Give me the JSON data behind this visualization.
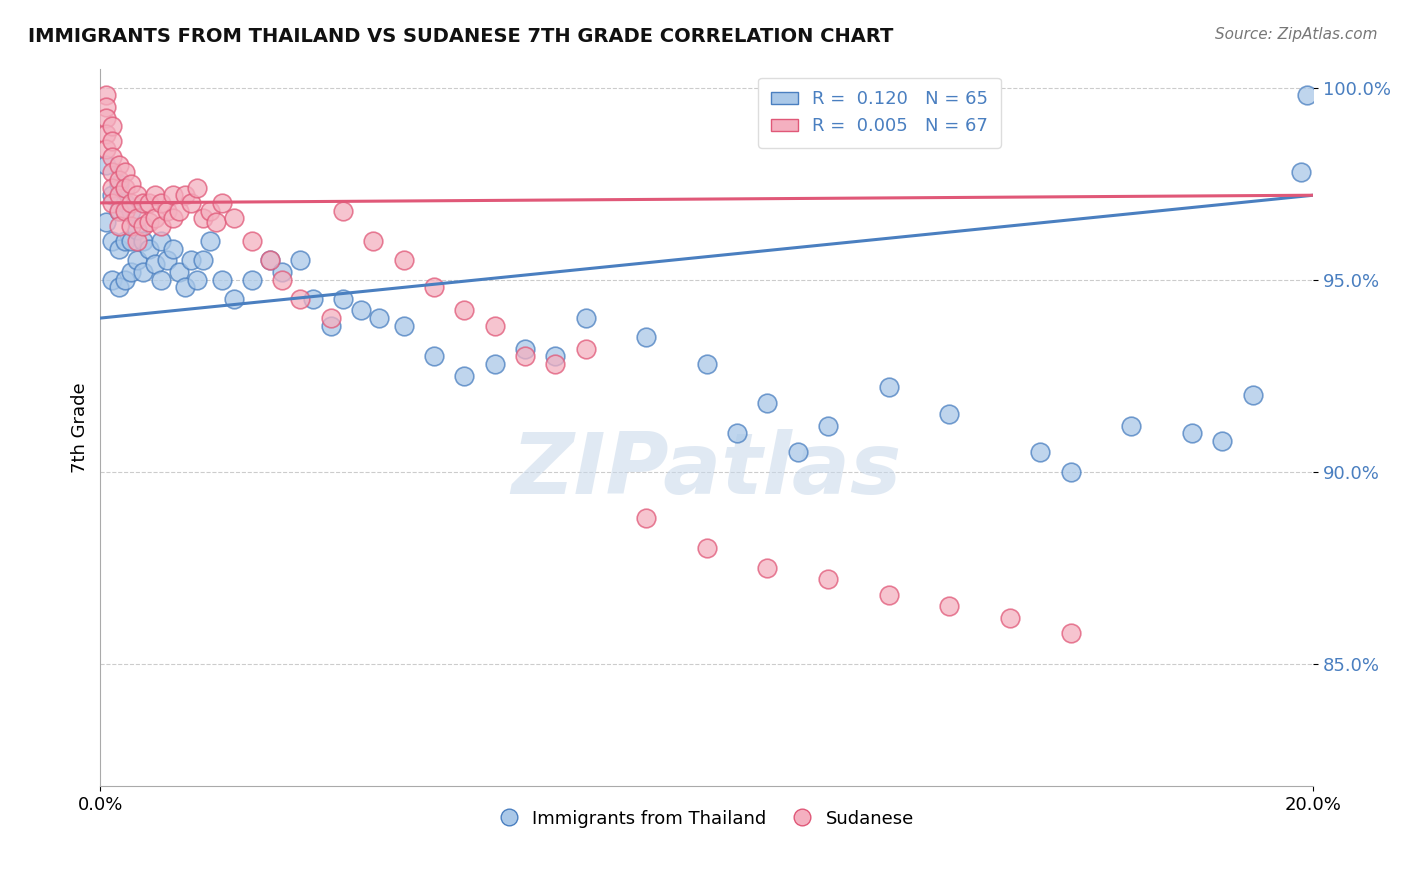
{
  "title": "IMMIGRANTS FROM THAILAND VS SUDANESE 7TH GRADE CORRELATION CHART",
  "source_text": "Source: ZipAtlas.com",
  "ylabel": "7th Grade",
  "xmin": 0.0,
  "xmax": 0.2,
  "ymin": 0.818,
  "ymax": 1.005,
  "ytick_labels": [
    "85.0%",
    "90.0%",
    "95.0%",
    "100.0%"
  ],
  "ytick_values": [
    0.85,
    0.9,
    0.95,
    1.0
  ],
  "xtick_labels": [
    "0.0%",
    "20.0%"
  ],
  "xtick_values": [
    0.0,
    0.2
  ],
  "blue_color": "#aac8e8",
  "pink_color": "#f4b0c0",
  "blue_line_color": "#4a7fc0",
  "pink_line_color": "#e05878",
  "blue_R": 0.12,
  "blue_N": 65,
  "pink_R": 0.005,
  "pink_N": 67,
  "legend_label_blue": "Immigrants from Thailand",
  "legend_label_pink": "Sudanese",
  "watermark": "ZIPatlas",
  "blue_x": [
    0.001,
    0.001,
    0.002,
    0.002,
    0.002,
    0.003,
    0.003,
    0.003,
    0.003,
    0.004,
    0.004,
    0.004,
    0.005,
    0.005,
    0.005,
    0.006,
    0.006,
    0.007,
    0.007,
    0.008,
    0.009,
    0.01,
    0.01,
    0.011,
    0.012,
    0.013,
    0.014,
    0.015,
    0.016,
    0.017,
    0.018,
    0.02,
    0.022,
    0.025,
    0.028,
    0.03,
    0.033,
    0.035,
    0.038,
    0.04,
    0.043,
    0.046,
    0.05,
    0.055,
    0.06,
    0.065,
    0.07,
    0.075,
    0.08,
    0.09,
    0.1,
    0.105,
    0.11,
    0.115,
    0.12,
    0.13,
    0.14,
    0.155,
    0.16,
    0.17,
    0.18,
    0.185,
    0.19,
    0.198,
    0.199
  ],
  "blue_y": [
    0.98,
    0.965,
    0.972,
    0.96,
    0.95,
    0.975,
    0.968,
    0.958,
    0.948,
    0.97,
    0.96,
    0.95,
    0.968,
    0.96,
    0.952,
    0.963,
    0.955,
    0.96,
    0.952,
    0.958,
    0.954,
    0.96,
    0.95,
    0.955,
    0.958,
    0.952,
    0.948,
    0.955,
    0.95,
    0.955,
    0.96,
    0.95,
    0.945,
    0.95,
    0.955,
    0.952,
    0.955,
    0.945,
    0.938,
    0.945,
    0.942,
    0.94,
    0.938,
    0.93,
    0.925,
    0.928,
    0.932,
    0.93,
    0.94,
    0.935,
    0.928,
    0.91,
    0.918,
    0.905,
    0.912,
    0.922,
    0.915,
    0.905,
    0.9,
    0.912,
    0.91,
    0.908,
    0.92,
    0.978,
    0.998
  ],
  "pink_x": [
    0.001,
    0.001,
    0.001,
    0.001,
    0.001,
    0.002,
    0.002,
    0.002,
    0.002,
    0.002,
    0.002,
    0.003,
    0.003,
    0.003,
    0.003,
    0.003,
    0.004,
    0.004,
    0.004,
    0.005,
    0.005,
    0.005,
    0.006,
    0.006,
    0.006,
    0.007,
    0.007,
    0.008,
    0.008,
    0.009,
    0.009,
    0.01,
    0.01,
    0.011,
    0.012,
    0.012,
    0.013,
    0.014,
    0.015,
    0.016,
    0.017,
    0.018,
    0.019,
    0.02,
    0.022,
    0.025,
    0.028,
    0.03,
    0.033,
    0.038,
    0.04,
    0.045,
    0.05,
    0.055,
    0.06,
    0.065,
    0.07,
    0.075,
    0.08,
    0.09,
    0.1,
    0.11,
    0.12,
    0.13,
    0.14,
    0.15,
    0.16
  ],
  "pink_y": [
    0.998,
    0.995,
    0.992,
    0.988,
    0.984,
    0.99,
    0.986,
    0.982,
    0.978,
    0.974,
    0.97,
    0.98,
    0.976,
    0.972,
    0.968,
    0.964,
    0.978,
    0.974,
    0.968,
    0.975,
    0.97,
    0.964,
    0.972,
    0.966,
    0.96,
    0.97,
    0.964,
    0.97,
    0.965,
    0.972,
    0.966,
    0.97,
    0.964,
    0.968,
    0.972,
    0.966,
    0.968,
    0.972,
    0.97,
    0.974,
    0.966,
    0.968,
    0.965,
    0.97,
    0.966,
    0.96,
    0.955,
    0.95,
    0.945,
    0.94,
    0.968,
    0.96,
    0.955,
    0.948,
    0.942,
    0.938,
    0.93,
    0.928,
    0.932,
    0.888,
    0.88,
    0.875,
    0.872,
    0.868,
    0.865,
    0.862,
    0.858
  ]
}
